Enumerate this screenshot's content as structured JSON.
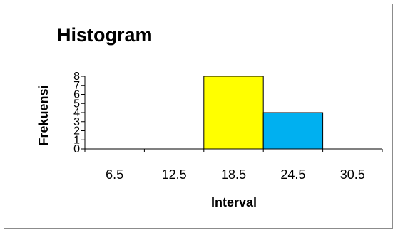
{
  "chart_data": {
    "type": "bar",
    "title": "Histogram",
    "xlabel": "Interval",
    "ylabel": "Frekuensi",
    "categories": [
      "6.5",
      "12.5",
      "18.5",
      "24.5",
      "30.5"
    ],
    "values": [
      0,
      0,
      8,
      4,
      0
    ],
    "bar_colors": [
      "#ffff00",
      "#ffff00",
      "#ffff00",
      "#00b0f0",
      "#ffff00"
    ],
    "bar_edge_color": "#000000",
    "y_ticks": [
      0,
      1,
      2,
      3,
      4,
      5,
      6,
      7,
      8
    ],
    "ylim": [
      0,
      8
    ],
    "grid": false,
    "legend": false
  }
}
